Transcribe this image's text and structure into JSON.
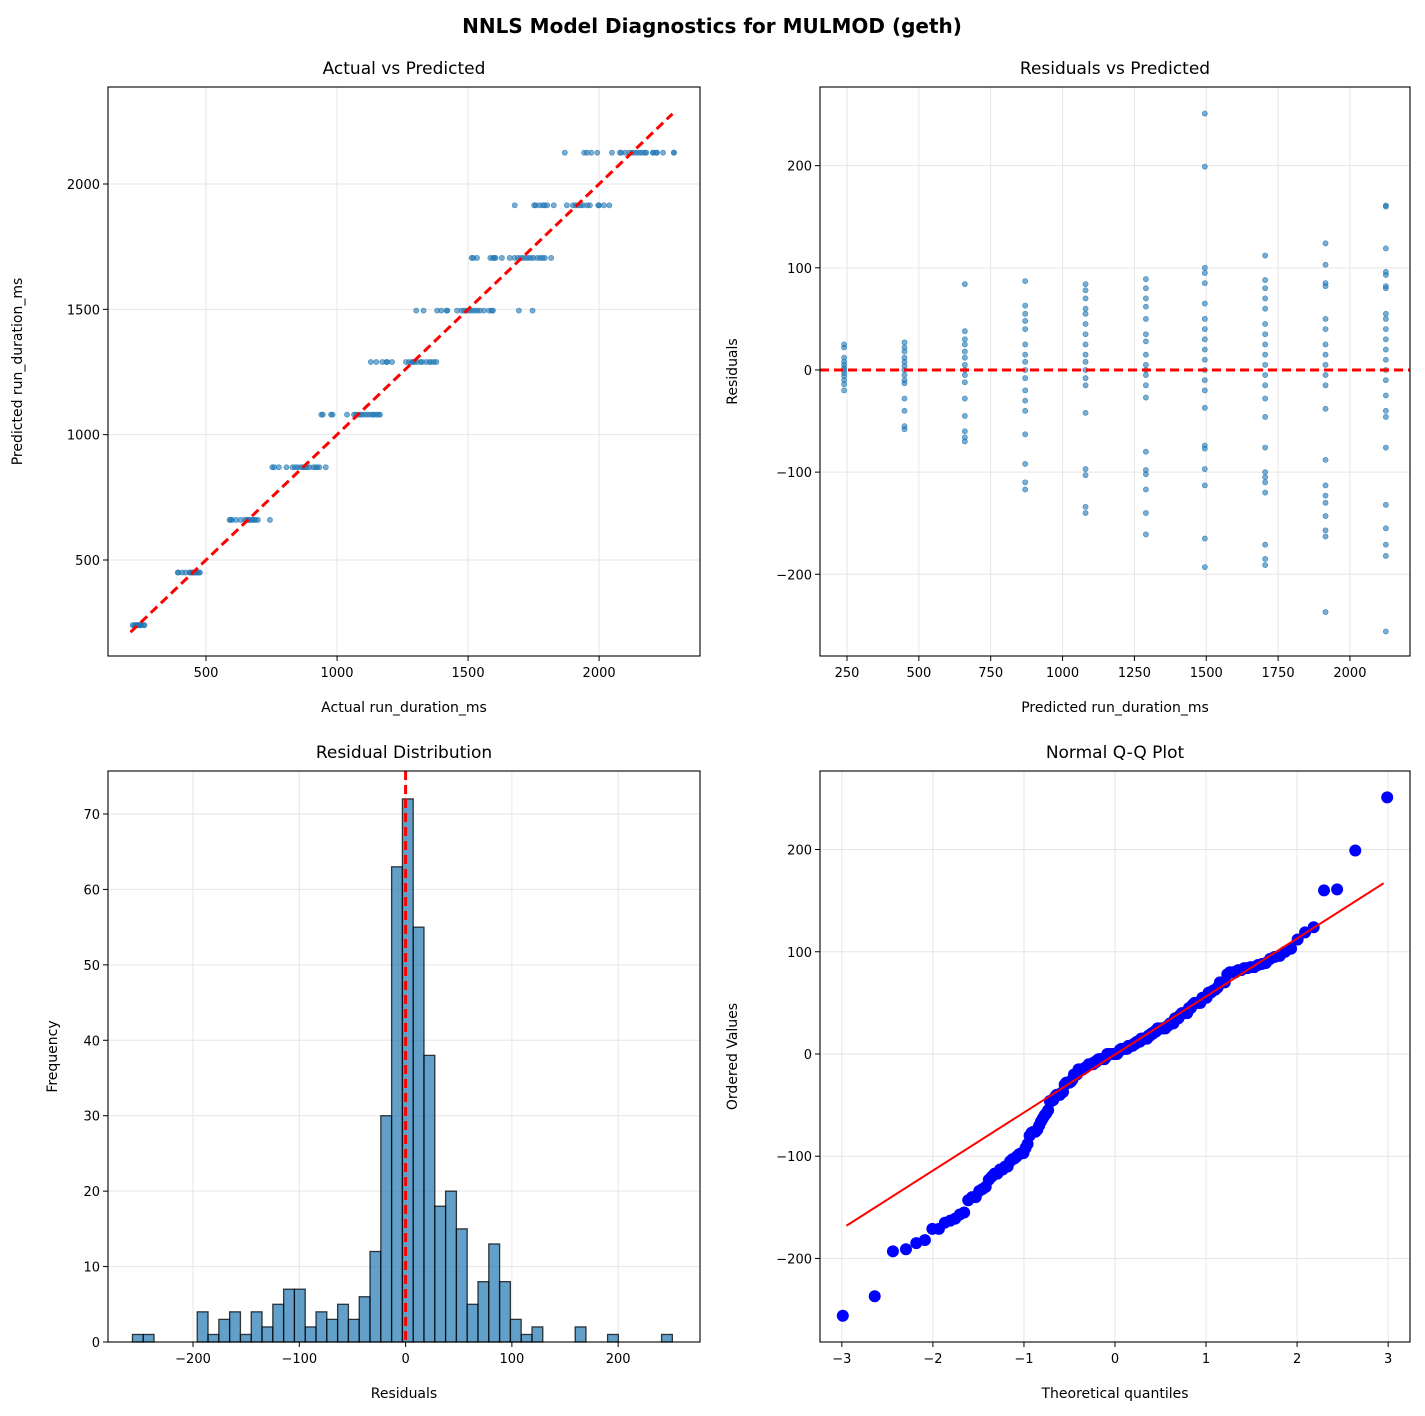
{
  "suptitle": "NNLS Model Diagnostics for MULMOD (geth)",
  "colors": {
    "points": "#1f77b4",
    "reference": "#ff0000",
    "qq_points": "#0000ff",
    "hist_fill": "#1f77b4"
  },
  "chart_data": [
    {
      "type": "scatter",
      "title": "Actual vs Predicted",
      "xlabel": "Actual run_duration_ms",
      "ylabel": "Predicted run_duration_ms",
      "xlim": [
        126,
        2385
      ],
      "ylim": [
        117,
        2387
      ],
      "xticks": [
        500,
        1000,
        1500,
        2000
      ],
      "yticks": [
        500,
        1000,
        1500,
        2000
      ],
      "grid": true,
      "reference_line": {
        "style": "dashed",
        "from": [
          212,
          212
        ],
        "to": [
          2280,
          2280
        ]
      },
      "note_points": "x = predicted level + residual, y = predicted level (see residual_data)"
    },
    {
      "type": "scatter",
      "title": "Residuals vs Predicted",
      "xlabel": "Predicted run_duration_ms",
      "ylabel": "Residuals",
      "xlim": [
        156,
        2209
      ],
      "ylim": [
        -280,
        277
      ],
      "xticks": [
        250,
        500,
        750,
        1000,
        1250,
        1500,
        1750,
        2000
      ],
      "yticks": [
        -200,
        -100,
        0,
        100,
        200
      ],
      "grid": true,
      "reference_line": {
        "style": "dashed",
        "y": 0
      }
    },
    {
      "type": "bar",
      "title": "Residual Distribution",
      "xlabel": "Residuals",
      "ylabel": "Frequency",
      "xlim": [
        -280,
        277
      ],
      "ylim": [
        0,
        75.7
      ],
      "xticks": [
        -200,
        -100,
        0,
        100,
        200
      ],
      "yticks": [
        0,
        10,
        20,
        30,
        40,
        50,
        60,
        70
      ],
      "grid": true,
      "bin_start": -257,
      "bin_end": 251,
      "counts": [
        1,
        1,
        0,
        0,
        0,
        0,
        4,
        1,
        3,
        4,
        1,
        4,
        2,
        5,
        7,
        7,
        2,
        4,
        3,
        5,
        3,
        6,
        12,
        30,
        63,
        72,
        55,
        38,
        18,
        20,
        15,
        5,
        8,
        13,
        8,
        3,
        1,
        2,
        0,
        0,
        0,
        2,
        0,
        0,
        1,
        0,
        0,
        0,
        0,
        1
      ],
      "reference_line": {
        "style": "dashed",
        "x": 0
      }
    },
    {
      "type": "scatter",
      "title": "Normal Q-Q Plot",
      "xlabel": "Theoretical quantiles",
      "ylabel": "Ordered Values",
      "xlim": [
        -3.24,
        3.24
      ],
      "ylim": [
        -281.7,
        276.8
      ],
      "xticks": [
        -3,
        -2,
        -1,
        0,
        1,
        2,
        3
      ],
      "yticks": [
        -200,
        -100,
        0,
        100,
        200
      ],
      "grid": true,
      "fit_line": {
        "from": [
          -2.95,
          -168
        ],
        "to": [
          2.95,
          167
        ]
      }
    }
  ],
  "residual_data": [
    {
      "predicted": 240,
      "residuals": [
        25,
        22,
        12,
        8,
        5,
        2,
        0,
        -3,
        -6,
        -10,
        -14,
        -20
      ]
    },
    {
      "predicted": 450,
      "residuals": [
        27,
        22,
        18,
        12,
        8,
        4,
        0,
        -5,
        -10,
        -13,
        -28,
        -40,
        -55,
        -58
      ]
    },
    {
      "predicted": 660,
      "residuals": [
        84,
        38,
        30,
        25,
        18,
        12,
        5,
        0,
        -5,
        -12,
        -28,
        -45,
        -60,
        -66,
        -70
      ]
    },
    {
      "predicted": 870,
      "residuals": [
        87,
        63,
        55,
        48,
        40,
        25,
        15,
        8,
        0,
        -8,
        -20,
        -30,
        -40,
        -63,
        -92,
        -110,
        -117
      ]
    },
    {
      "predicted": 1080,
      "residuals": [
        84,
        78,
        70,
        60,
        55,
        45,
        35,
        25,
        15,
        8,
        0,
        -8,
        -15,
        -42,
        -97,
        -103,
        -134,
        -140
      ]
    },
    {
      "predicted": 1290,
      "residuals": [
        89,
        80,
        70,
        62,
        50,
        35,
        28,
        15,
        5,
        0,
        -5,
        -15,
        -27,
        -80,
        -98,
        -102,
        -117,
        -140,
        -161
      ]
    },
    {
      "predicted": 1495,
      "residuals": [
        251,
        199,
        100,
        95,
        85,
        65,
        50,
        40,
        30,
        20,
        10,
        0,
        -10,
        -20,
        -37,
        -74,
        -77,
        -97,
        -113,
        -165,
        -193
      ]
    },
    {
      "predicted": 1705,
      "residuals": [
        112,
        88,
        80,
        70,
        60,
        45,
        35,
        25,
        15,
        5,
        -5,
        -15,
        -28,
        -46,
        -76,
        -100,
        -105,
        -110,
        -120,
        -171,
        -185,
        -191
      ]
    },
    {
      "predicted": 1915,
      "residuals": [
        124,
        103,
        85,
        82,
        50,
        40,
        25,
        15,
        5,
        -5,
        -15,
        -38,
        -88,
        -113,
        -123,
        -130,
        -143,
        -157,
        -163,
        -237
      ]
    },
    {
      "predicted": 2125,
      "residuals": [
        161,
        160,
        119,
        96,
        93,
        82,
        80,
        55,
        50,
        40,
        30,
        20,
        10,
        0,
        -10,
        -25,
        -40,
        -46,
        -76,
        -132,
        -155,
        -171,
        -182,
        -256
      ]
    }
  ]
}
